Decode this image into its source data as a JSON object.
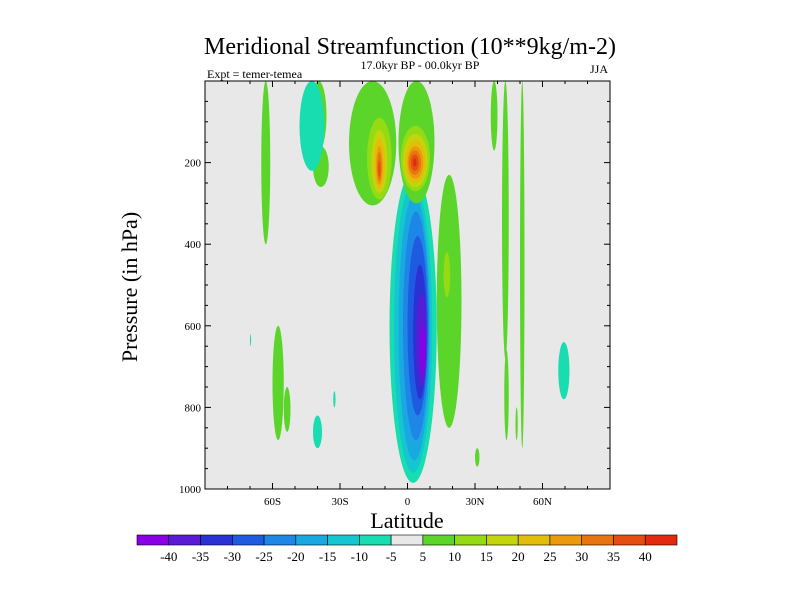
{
  "chart_data": {
    "type": "contour",
    "title": "Meridional Streamfunction (10**9kg/m-2)",
    "subtitle": "17.0kyr BP - 00.0kyr BP",
    "left_label": "Expt = temer-temea",
    "right_label": "JJA",
    "xlabel": "Latitude",
    "ylabel": "Pressure (in hPa)",
    "xlim": [
      -90,
      90
    ],
    "ylim": [
      1000,
      0
    ],
    "x_ticks": [
      {
        "value": -60,
        "label": "60S"
      },
      {
        "value": -30,
        "label": "30S"
      },
      {
        "value": 0,
        "label": "0"
      },
      {
        "value": 30,
        "label": "30N"
      },
      {
        "value": 60,
        "label": "60N"
      }
    ],
    "y_ticks": [
      {
        "value": 200,
        "label": "200"
      },
      {
        "value": 400,
        "label": "400"
      },
      {
        "value": 600,
        "label": "600"
      },
      {
        "value": 800,
        "label": "800"
      },
      {
        "value": 1000,
        "label": "1000"
      }
    ],
    "colorbar": {
      "levels": [
        -40,
        -35,
        -30,
        -25,
        -20,
        -15,
        -10,
        -5,
        5,
        10,
        15,
        20,
        25,
        30,
        35,
        40
      ],
      "colors": [
        "#8A00E6",
        "#5A1BD6",
        "#2A32D6",
        "#1F5BE0",
        "#1E86E6",
        "#19A9E0",
        "#14C6D0",
        "#17DDB0",
        "#E8E8E8",
        "#5BD52A",
        "#94DB14",
        "#C3D60C",
        "#E2BE0B",
        "#EB9A0C",
        "#E8740F",
        "#E54E10",
        "#E32A10"
      ]
    },
    "features": [
      {
        "name": "negative cell",
        "levels": [
          {
            "value": -5,
            "lat": [
              -8,
              13
            ],
            "pres": [
              220,
              985
            ]
          },
          {
            "value": -10,
            "lat": [
              -6,
              11
            ],
            "pres": [
              250,
              960
            ]
          },
          {
            "value": -15,
            "lat": [
              -4,
              10
            ],
            "pres": [
              280,
              930
            ]
          },
          {
            "value": -20,
            "lat": [
              -2,
              9.5
            ],
            "pres": [
              320,
              880
            ]
          },
          {
            "value": -25,
            "lat": [
              0,
              9
            ],
            "pres": [
              380,
              820
            ]
          },
          {
            "value": -30,
            "lat": [
              2.5,
              8.5
            ],
            "pres": [
              450,
              780
            ]
          },
          {
            "value": -35,
            "lat": [
              4,
              8.5
            ],
            "pres": [
              520,
              750
            ]
          },
          {
            "value": -40,
            "lat": [
              5.5,
              8
            ],
            "pres": [
              600,
              720
            ]
          }
        ]
      },
      {
        "name": "positive cell west",
        "levels": [
          {
            "value": 5,
            "lat": [
              -26,
              -5
            ],
            "pres": [
              0,
              305
            ]
          },
          {
            "value": 10,
            "lat": [
              -18,
              -7
            ],
            "pres": [
              90,
              290
            ]
          },
          {
            "value": 15,
            "lat": [
              -16,
              -9
            ],
            "pres": [
              120,
              275
            ]
          },
          {
            "value": 20,
            "lat": [
              -15,
              -10
            ],
            "pres": [
              140,
              265
            ]
          },
          {
            "value": 25,
            "lat": [
              -14,
              -11
            ],
            "pres": [
              160,
              255
            ]
          },
          {
            "value": 30,
            "lat": [
              -13.5,
              -11.5
            ],
            "pres": [
              175,
              245
            ]
          },
          {
            "value": 35,
            "lat": [
              -13,
              -12
            ],
            "pres": [
              195,
              235
            ]
          }
        ]
      },
      {
        "name": "positive cell east",
        "levels": [
          {
            "value": 5,
            "lat": [
              -4,
              12
            ],
            "pres": [
              0,
              300
            ]
          },
          {
            "value": 10,
            "lat": [
              -3,
              10
            ],
            "pres": [
              110,
              270
            ]
          },
          {
            "value": 15,
            "lat": [
              -2,
              9
            ],
            "pres": [
              130,
              260
            ]
          },
          {
            "value": 20,
            "lat": [
              -1,
              8
            ],
            "pres": [
              145,
              250
            ]
          },
          {
            "value": 25,
            "lat": [
              0,
              7
            ],
            "pres": [
              160,
              240
            ]
          },
          {
            "value": 30,
            "lat": [
              0.5,
              6
            ],
            "pres": [
              170,
              230
            ]
          },
          {
            "value": 35,
            "lat": [
              1.5,
              5
            ],
            "pres": [
              180,
              220
            ]
          },
          {
            "value": 40,
            "lat": [
              2.5,
              4
            ],
            "pres": [
              190,
              210
            ]
          }
        ]
      },
      {
        "name": "positive band east",
        "levels": [
          {
            "value": 5,
            "lat": [
              13,
              24
            ],
            "pres": [
              230,
              850
            ]
          },
          {
            "value": 10,
            "lat": [
              16,
              19
            ],
            "pres": [
              420,
              530
            ]
          }
        ]
      },
      {
        "name": "small positive strips",
        "levels": [
          {
            "value": 5,
            "lat": [
              -65,
              -61
            ],
            "pres": [
              0,
              400
            ]
          },
          {
            "value": 5,
            "lat": [
              -60,
              -55
            ],
            "pres": [
              600,
              880
            ]
          },
          {
            "value": 5,
            "lat": [
              -55,
              -52
            ],
            "pres": [
              750,
              860
            ]
          },
          {
            "value": 5,
            "lat": [
              -43,
              -36
            ],
            "pres": [
              0,
              170
            ]
          },
          {
            "value": 5,
            "lat": [
              -42,
              -35
            ],
            "pres": [
              160,
              260
            ]
          },
          {
            "value": 5,
            "lat": [
              37,
              40
            ],
            "pres": [
              0,
              170
            ]
          },
          {
            "value": 5,
            "lat": [
              42,
              45
            ],
            "pres": [
              0,
              680
            ]
          },
          {
            "value": 5,
            "lat": [
              43,
              45
            ],
            "pres": [
              660,
              880
            ]
          },
          {
            "value": 5,
            "lat": [
              50,
              52
            ],
            "pres": [
              0,
              900
            ]
          },
          {
            "value": 5,
            "lat": [
              48,
              49
            ],
            "pres": [
              800,
              880
            ]
          },
          {
            "value": 5,
            "lat": [
              30,
              32
            ],
            "pres": [
              900,
              945
            ]
          }
        ]
      },
      {
        "name": "small negative patches",
        "levels": [
          {
            "value": -5,
            "lat": [
              -48,
              -37
            ],
            "pres": [
              0,
              220
            ]
          },
          {
            "value": -5,
            "lat": [
              -42,
              -38
            ],
            "pres": [
              820,
              900
            ]
          },
          {
            "value": -5,
            "lat": [
              -33,
              -32
            ],
            "pres": [
              760,
              800
            ]
          },
          {
            "value": -5,
            "lat": [
              -70,
              -69.5
            ],
            "pres": [
              620,
              650
            ]
          },
          {
            "value": -5,
            "lat": [
              67,
              72
            ],
            "pres": [
              640,
              780
            ]
          }
        ]
      }
    ]
  }
}
